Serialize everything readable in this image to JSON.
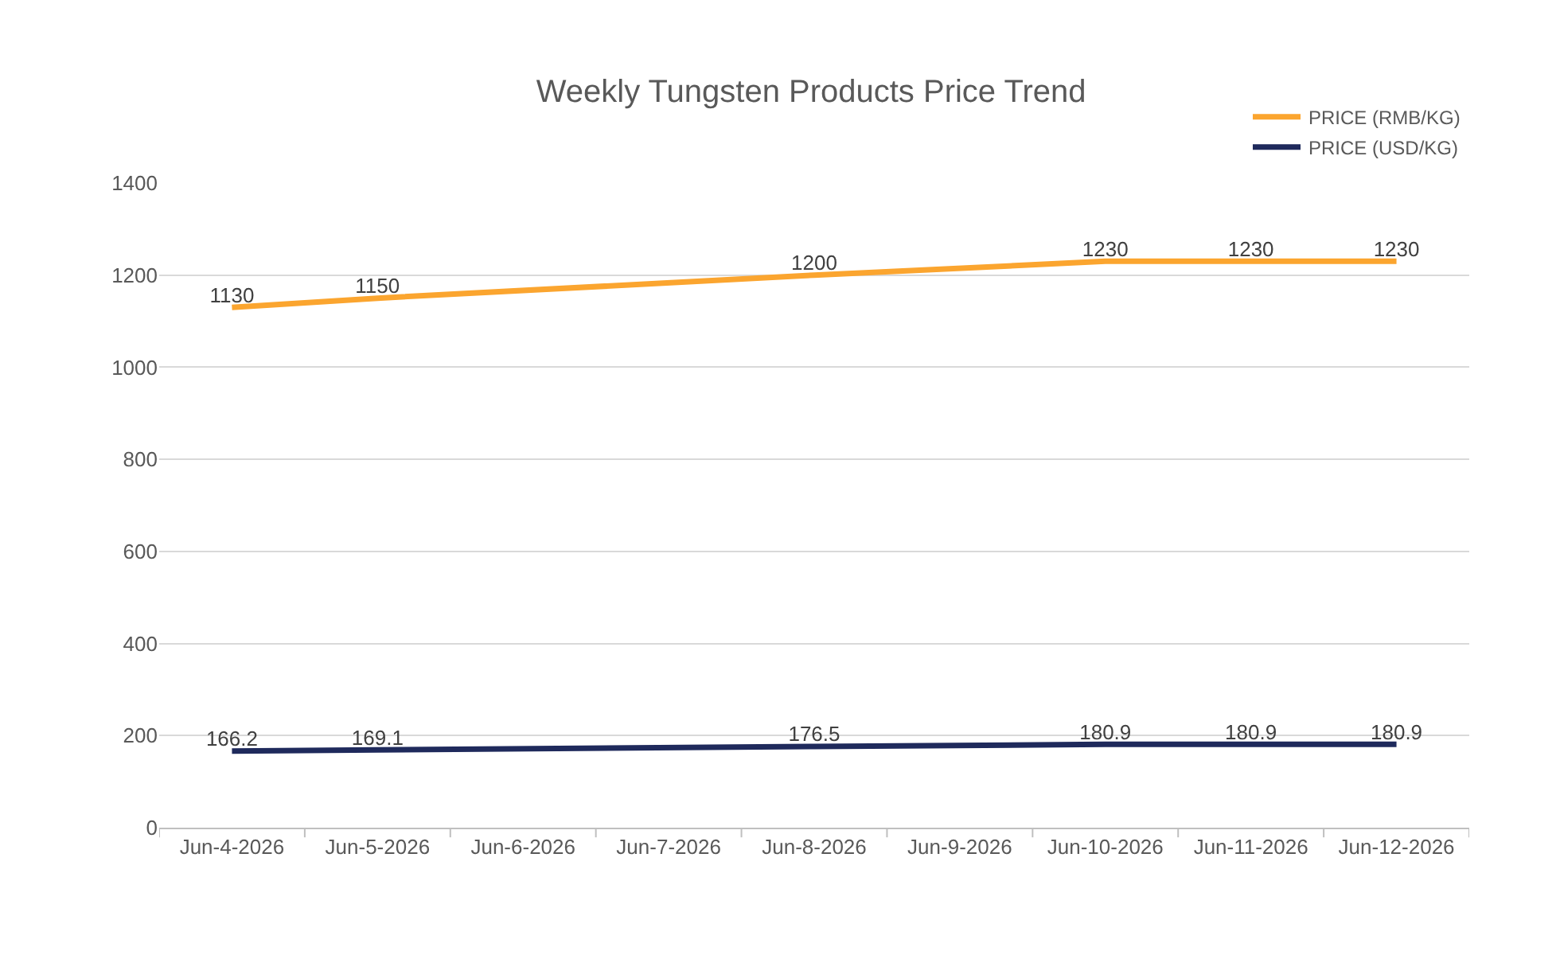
{
  "chart_data": {
    "type": "line",
    "title": "Weekly Tungsten Products Price Trend",
    "categories": [
      "Jun-4-2026",
      "Jun-5-2026",
      "Jun-6-2026",
      "Jun-7-2026",
      "Jun-8-2026",
      "Jun-9-2026",
      "Jun-10-2026",
      "Jun-11-2026",
      "Jun-12-2026"
    ],
    "series": [
      {
        "name": "PRICE (RMB/KG)",
        "color": "#fba52f",
        "values": [
          1130,
          1150,
          null,
          null,
          1200,
          null,
          1230,
          1230,
          1230
        ]
      },
      {
        "name": "PRICE (USD/KG)",
        "color": "#1f2a5c",
        "values": [
          166.2,
          169.1,
          null,
          null,
          176.5,
          null,
          180.9,
          180.9,
          180.9
        ]
      }
    ],
    "ylim": [
      0,
      1400
    ],
    "yticks": [
      0,
      200,
      400,
      600,
      800,
      1000,
      1200,
      1400
    ],
    "grid": "y",
    "legend": "top right",
    "data_labels": true
  }
}
